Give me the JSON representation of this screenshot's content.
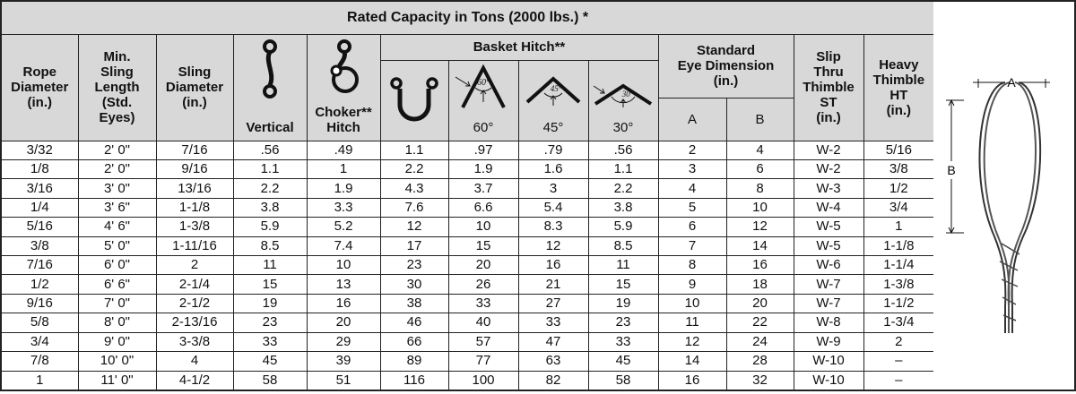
{
  "title": "Rated Capacity in Tons (2000 lbs.) *",
  "headers": {
    "rope_diameter": [
      "Rope",
      "Diameter",
      "(in.)"
    ],
    "min_sling_length": [
      "Min.",
      "Sling",
      "Length",
      "(Std.",
      "Eyes)"
    ],
    "sling_diameter": [
      "Sling",
      "Diameter",
      "(in.)"
    ],
    "vertical": "Vertical",
    "choker": [
      "Choker**",
      "Hitch"
    ],
    "basket_hitch": "Basket Hitch**",
    "angle_60": "60°",
    "angle_45": "45°",
    "angle_30": "30°",
    "icon_60": "60°",
    "icon_45": "45°",
    "icon_30": "30°",
    "standard_eye": [
      "Standard",
      "Eye Dimension",
      "(in.)"
    ],
    "col_a": "A",
    "col_b": "B",
    "slip_thru": [
      "Slip",
      "Thru",
      "Thimble",
      "ST",
      "(in.)"
    ],
    "heavy_thimble": [
      "Heavy",
      "Thimble",
      "HT",
      "(in.)"
    ]
  },
  "rows": [
    [
      "3/32",
      "2' 0\"",
      "7/16",
      ".56",
      ".49",
      "1.1",
      ".97",
      ".79",
      ".56",
      "2",
      "4",
      "W-2",
      "5/16"
    ],
    [
      "1/8",
      "2' 0\"",
      "9/16",
      "1.1",
      "1",
      "2.2",
      "1.9",
      "1.6",
      "1.1",
      "3",
      "6",
      "W-2",
      "3/8"
    ],
    [
      "3/16",
      "3' 0\"",
      "13/16",
      "2.2",
      "1.9",
      "4.3",
      "3.7",
      "3",
      "2.2",
      "4",
      "8",
      "W-3",
      "1/2"
    ],
    [
      "1/4",
      "3' 6\"",
      "1-1/8",
      "3.8",
      "3.3",
      "7.6",
      "6.6",
      "5.4",
      "3.8",
      "5",
      "10",
      "W-4",
      "3/4"
    ],
    [
      "5/16",
      "4' 6\"",
      "1-3/8",
      "5.9",
      "5.2",
      "12",
      "10",
      "8.3",
      "5.9",
      "6",
      "12",
      "W-5",
      "1"
    ],
    [
      "3/8",
      "5' 0\"",
      "1-11/16",
      "8.5",
      "7.4",
      "17",
      "15",
      "12",
      "8.5",
      "7",
      "14",
      "W-5",
      "1-1/8"
    ],
    [
      "7/16",
      "6' 0\"",
      "2",
      "11",
      "10",
      "23",
      "20",
      "16",
      "11",
      "8",
      "16",
      "W-6",
      "1-1/4"
    ],
    [
      "1/2",
      "6' 6\"",
      "2-1/4",
      "15",
      "13",
      "30",
      "26",
      "21",
      "15",
      "9",
      "18",
      "W-7",
      "1-3/8"
    ],
    [
      "9/16",
      "7' 0\"",
      "2-1/2",
      "19",
      "16",
      "38",
      "33",
      "27",
      "19",
      "10",
      "20",
      "W-7",
      "1-1/2"
    ],
    [
      "5/8",
      "8' 0\"",
      "2-13/16",
      "23",
      "20",
      "46",
      "40",
      "33",
      "23",
      "11",
      "22",
      "W-8",
      "1-3/4"
    ],
    [
      "3/4",
      "9' 0\"",
      "3-3/8",
      "33",
      "29",
      "66",
      "57",
      "47",
      "33",
      "12",
      "24",
      "W-9",
      "2"
    ],
    [
      "7/8",
      "10' 0\"",
      "4",
      "45",
      "39",
      "89",
      "77",
      "63",
      "45",
      "14",
      "28",
      "W-10",
      "–"
    ],
    [
      "1",
      "11' 0\"",
      "4-1/2",
      "58",
      "51",
      "116",
      "100",
      "82",
      "58",
      "16",
      "32",
      "W-10",
      "–"
    ]
  ],
  "diagram": {
    "label_a": "A",
    "label_b": "B"
  }
}
